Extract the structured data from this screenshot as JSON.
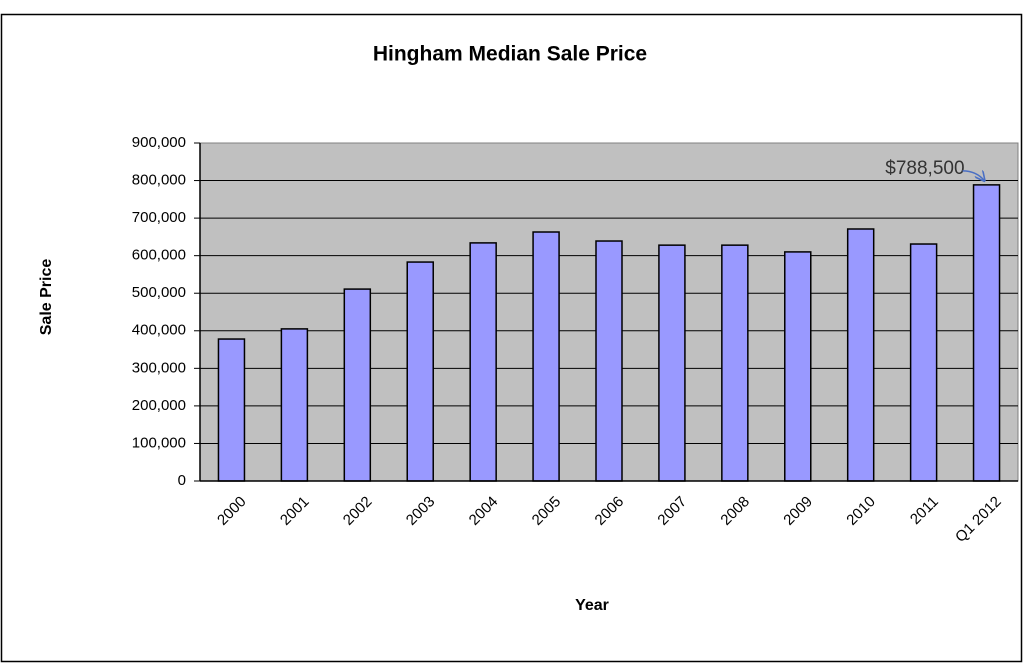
{
  "chart_data": {
    "type": "bar",
    "title": "Hingham Median Sale Price",
    "x_label": "Year",
    "y_label": "Sale Price",
    "categories": [
      "2000",
      "2001",
      "2002",
      "2003",
      "2004",
      "2005",
      "2006",
      "2007",
      "2008",
      "2009",
      "2010",
      "2011",
      "Q1 2012"
    ],
    "values": [
      378000,
      405000,
      511000,
      583000,
      634000,
      663000,
      639000,
      628000,
      628000,
      610000,
      671000,
      631000,
      788500
    ],
    "value_labels": [
      null,
      null,
      null,
      null,
      null,
      null,
      null,
      null,
      null,
      null,
      null,
      null,
      "$788,500"
    ],
    "color": "#9999ff",
    "plot_background": "#c0c0c0",
    "ylim": [
      0,
      900000
    ],
    "yticks": [
      0,
      {
        "value": 100000,
        "label": "100,000"
      },
      {
        "value": 200000,
        "label": "200,000"
      },
      {
        "value": 300000,
        "label": "300,000"
      },
      {
        "value": 400000,
        "label": "400,000"
      },
      {
        "value": 500000,
        "label": "500,000"
      },
      {
        "value": 600000,
        "label": "600,000"
      },
      {
        "value": 700000,
        "label": "700,000"
      },
      {
        "value": 800000,
        "label": "800,000"
      },
      {
        "value": 900000,
        "label": "900,000"
      }
    ],
    "grid": true
  }
}
